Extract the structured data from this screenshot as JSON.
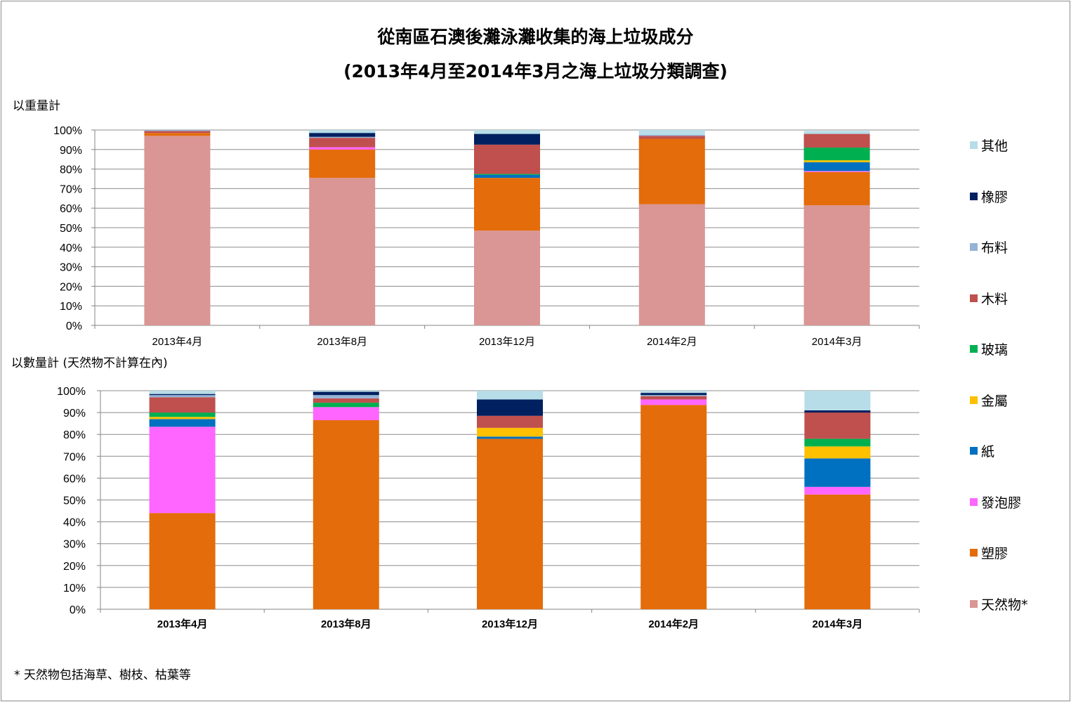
{
  "title": {
    "line1": "從南區石澳後灘泳灘收集的海上垃圾成分",
    "line2": "(2013年4月至2014年3月之海上垃圾分類調查)"
  },
  "chart1_label": "以重量計",
  "chart2_label": "以數量計 (天然物不計算在內)",
  "footnote": "* 天然物包括海草、樹枝、枯葉等",
  "legend": [
    {
      "name": "其他",
      "color": "#b7dde8"
    },
    {
      "name": "橡膠",
      "color": "#002060"
    },
    {
      "name": "布料",
      "color": "#95b3d7"
    },
    {
      "name": "木料",
      "color": "#c0504d"
    },
    {
      "name": "玻璃",
      "color": "#00b050"
    },
    {
      "name": "金屬",
      "color": "#ffc000"
    },
    {
      "name": "紙",
      "color": "#0070c0"
    },
    {
      "name": "發泡膠",
      "color": "#ff66ff"
    },
    {
      "name": "塑膠",
      "color": "#e46c0a"
    },
    {
      "name": "天然物*",
      "color": "#d99694"
    }
  ],
  "chart_data": [
    {
      "type": "bar",
      "stacked": true,
      "percent": true,
      "title": "以重量計",
      "ylim": [
        0,
        100
      ],
      "yticks": [
        "0%",
        "10%",
        "20%",
        "30%",
        "40%",
        "50%",
        "60%",
        "70%",
        "80%",
        "90%",
        "100%"
      ],
      "categories": [
        "2013年4月",
        "2013年8月",
        "2013年12月",
        "2014年2月",
        "2014年3月"
      ],
      "series": [
        {
          "name": "天然物*",
          "values": [
            97,
            75.5,
            48.5,
            62,
            61.5
          ]
        },
        {
          "name": "塑膠",
          "values": [
            1.5,
            14.5,
            27,
            33.5,
            17
          ]
        },
        {
          "name": "發泡膠",
          "values": [
            0,
            1.2,
            0,
            0,
            0.5
          ]
        },
        {
          "name": "紙",
          "values": [
            0,
            0,
            1.5,
            0,
            4.5
          ]
        },
        {
          "name": "金屬",
          "values": [
            0,
            0,
            0,
            0,
            1
          ]
        },
        {
          "name": "玻璃",
          "values": [
            0,
            0,
            0.5,
            0,
            6.5
          ]
        },
        {
          "name": "木料",
          "values": [
            1,
            4.8,
            15,
            1.5,
            7
          ]
        },
        {
          "name": "布料",
          "values": [
            0.5,
            0.5,
            0,
            0.5,
            0
          ]
        },
        {
          "name": "橡膠",
          "values": [
            0,
            2,
            5.5,
            0,
            0
          ]
        },
        {
          "name": "其他",
          "values": [
            0,
            1.5,
            2,
            2.5,
            1.5
          ]
        }
      ]
    },
    {
      "type": "bar",
      "stacked": true,
      "percent": true,
      "title": "以數量計 (天然物不計算在內)",
      "ylim": [
        0,
        100
      ],
      "yticks": [
        "0%",
        "10%",
        "20%",
        "30%",
        "40%",
        "50%",
        "60%",
        "70%",
        "80%",
        "90%",
        "100%"
      ],
      "categories": [
        "2013年4月",
        "2013年8月",
        "2013年12月",
        "2014年2月",
        "2014年3月"
      ],
      "series": [
        {
          "name": "天然物*",
          "values": [
            0,
            0,
            0,
            0,
            0
          ]
        },
        {
          "name": "塑膠",
          "values": [
            44,
            86.5,
            78,
            93.5,
            52.5
          ]
        },
        {
          "name": "發泡膠",
          "values": [
            39.5,
            6,
            0,
            2.5,
            3.5
          ]
        },
        {
          "name": "紙",
          "values": [
            3.5,
            0,
            1,
            0,
            13
          ]
        },
        {
          "name": "金屬",
          "values": [
            1,
            0,
            4,
            0,
            5.5
          ]
        },
        {
          "name": "玻璃",
          "values": [
            2,
            2,
            0,
            0,
            3.5
          ]
        },
        {
          "name": "木料",
          "values": [
            7,
            2,
            5.5,
            1.5,
            12
          ]
        },
        {
          "name": "布料",
          "values": [
            1,
            1.5,
            0,
            0.5,
            0
          ]
        },
        {
          "name": "橡膠",
          "values": [
            0.5,
            1.5,
            7.5,
            1,
            1
          ]
        },
        {
          "name": "其他",
          "values": [
            1.5,
            0.5,
            4,
            1,
            9
          ]
        }
      ]
    }
  ]
}
